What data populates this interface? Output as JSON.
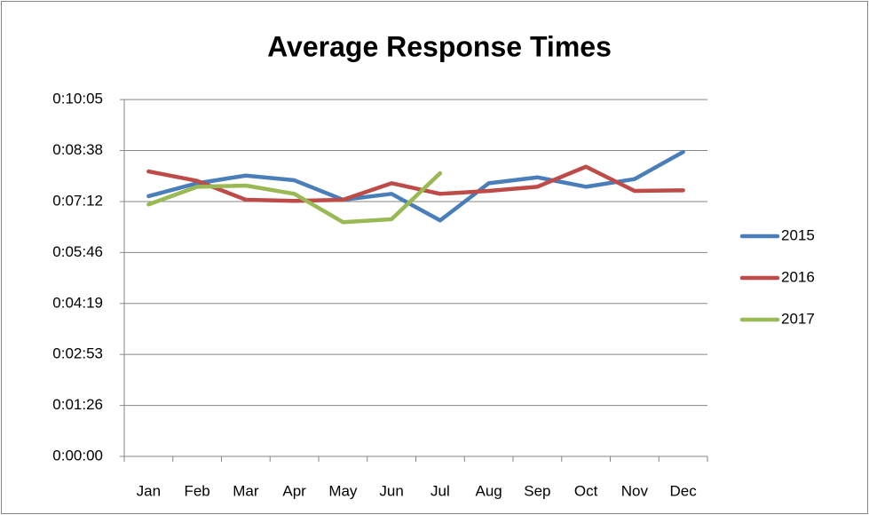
{
  "chart_data": {
    "type": "line",
    "title": "Average Response Times",
    "categories": [
      "Jan",
      "Feb",
      "Mar",
      "Apr",
      "May",
      "Jun",
      "Jul",
      "Aug",
      "Sep",
      "Oct",
      "Nov",
      "Dec"
    ],
    "series": [
      {
        "name": "2015",
        "color": "#4a7ebb",
        "values": [
          441,
          463,
          476,
          468,
          435,
          445,
          400,
          463,
          473,
          457,
          470,
          516
        ]
      },
      {
        "name": "2016",
        "color": "#be4b48",
        "values": [
          483,
          467,
          435,
          433,
          435,
          463,
          445,
          450,
          457,
          491,
          450,
          451
        ]
      },
      {
        "name": "2017",
        "color": "#98b954",
        "values": [
          427,
          457,
          459,
          445,
          397,
          402,
          480,
          null,
          null,
          null,
          null,
          null
        ]
      }
    ],
    "ylim": [
      0,
      605
    ],
    "yticks": [
      {
        "value": 0,
        "label": "0:00:00"
      },
      {
        "value": 86.4,
        "label": "0:01:26"
      },
      {
        "value": 172.8,
        "label": "0:02:53"
      },
      {
        "value": 259.2,
        "label": "0:04:19"
      },
      {
        "value": 345.6,
        "label": "0:05:46"
      },
      {
        "value": 432,
        "label": "0:07:12"
      },
      {
        "value": 518.4,
        "label": "0:08:38"
      },
      {
        "value": 604.8,
        "label": "0:10:05"
      }
    ],
    "grid": true,
    "legend": "right"
  }
}
